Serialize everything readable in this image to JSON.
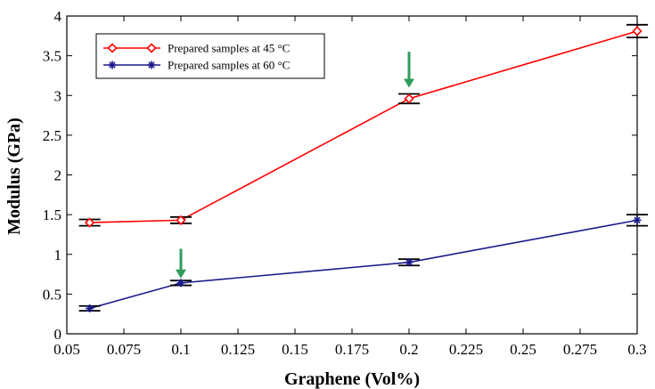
{
  "chart_data": {
    "type": "line",
    "title": "",
    "xlabel": "Graphene (Vol%)",
    "ylabel": "Modulus (GPa)",
    "xlim": [
      0.05,
      0.3
    ],
    "ylim": [
      0,
      4
    ],
    "x_ticks": [
      0.05,
      0.075,
      0.1,
      0.125,
      0.15,
      0.175,
      0.2,
      0.225,
      0.25,
      0.275,
      0.3
    ],
    "x_tick_labels": [
      "0.05",
      "0.075",
      "0.1",
      "0.125",
      "0.15",
      "0.175",
      "0.2",
      "0.225",
      "0.25",
      "0.275",
      "0.3"
    ],
    "y_ticks": [
      0,
      0.5,
      1,
      1.5,
      2,
      2.5,
      3,
      3.5,
      4
    ],
    "y_tick_labels": [
      "0",
      "0.5",
      "1",
      "1.5",
      "2",
      "2.5",
      "3",
      "3.5",
      "4"
    ],
    "grid": false,
    "legend_position": "top-left",
    "x": [
      0.06,
      0.1,
      0.2,
      0.3
    ],
    "series": [
      {
        "name": "Prepared samples at 45 °C",
        "color": "#ff0000",
        "marker": "diamond-open",
        "values": [
          1.4,
          1.43,
          2.96,
          3.81
        ],
        "error": [
          0.04,
          0.04,
          0.06,
          0.08
        ]
      },
      {
        "name": "Prepared samples at 60 °C",
        "color": "#1a1a8c",
        "marker": "star",
        "values": [
          0.32,
          0.64,
          0.9,
          1.43
        ],
        "error": [
          0.03,
          0.03,
          0.04,
          0.07
        ]
      }
    ],
    "annotations": [
      {
        "type": "arrow",
        "color": "#2e9e5b",
        "x": 0.2,
        "y_from": 3.55,
        "y_to": 3.12
      },
      {
        "type": "arrow",
        "color": "#2e9e5b",
        "x": 0.1,
        "y_from": 1.07,
        "y_to": 0.72
      }
    ]
  }
}
